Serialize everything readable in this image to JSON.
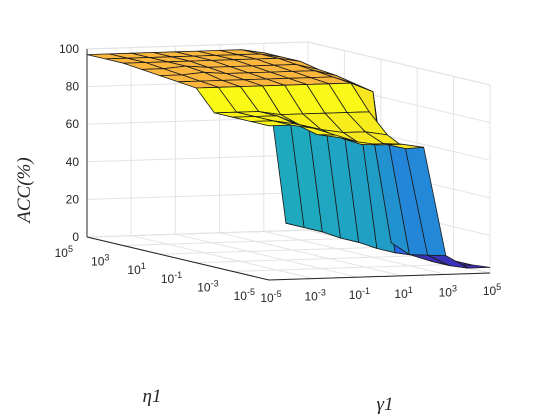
{
  "chart_data": {
    "type": "surface3d",
    "zlabel": "ACC(%)",
    "xlabel": "γ1",
    "ylabel": "η1",
    "zlim": [
      0,
      100
    ],
    "z_ticks": [
      "0",
      "20",
      "40",
      "60",
      "80",
      "100"
    ],
    "gamma1_ticks": [
      {
        "base": "10",
        "exp": "-5"
      },
      {
        "base": "10",
        "exp": "-3"
      },
      {
        "base": "10",
        "exp": "-1"
      },
      {
        "base": "10",
        "exp": "1"
      },
      {
        "base": "10",
        "exp": "3"
      },
      {
        "base": "10",
        "exp": "5"
      }
    ],
    "eta1_ticks": [
      {
        "base": "10",
        "exp": "5"
      },
      {
        "base": "10",
        "exp": "3"
      },
      {
        "base": "10",
        "exp": "1"
      },
      {
        "base": "10",
        "exp": "-1"
      },
      {
        "base": "10",
        "exp": "-3"
      },
      {
        "base": "10",
        "exp": "-5"
      }
    ],
    "gamma1_exponents": [
      -5,
      -4,
      -3,
      -2,
      -1,
      0,
      1,
      2,
      3,
      4,
      5
    ],
    "eta1_exponents": [
      5,
      4,
      3,
      2,
      1,
      0,
      -1,
      -2,
      -3,
      -4,
      -5
    ],
    "acc_rows_description_free": true,
    "acc": [
      [
        97,
        97,
        97,
        97,
        97,
        97,
        97,
        97,
        95,
        4,
        4
      ],
      [
        97,
        97,
        97,
        97,
        97,
        97,
        97,
        97,
        95,
        4,
        4
      ],
      [
        97,
        97,
        97,
        97,
        97,
        97,
        97,
        97,
        95,
        4,
        4
      ],
      [
        96,
        96,
        97,
        96,
        96,
        96,
        96,
        96,
        93,
        3,
        3
      ],
      [
        95,
        95,
        96,
        95,
        95,
        95,
        95,
        95,
        92,
        3,
        3
      ],
      [
        94,
        94,
        94,
        94,
        94,
        94,
        94,
        94,
        90,
        2,
        2
      ],
      [
        93,
        93,
        93,
        93,
        93,
        93,
        93,
        93,
        88,
        2,
        2
      ],
      [
        82,
        82,
        82,
        80,
        80,
        80,
        80,
        80,
        10,
        3,
        3
      ],
      [
        82,
        82,
        82,
        77,
        74,
        72,
        72,
        70,
        6,
        2,
        2
      ],
      [
        82,
        82,
        80,
        74,
        72,
        68,
        68,
        65,
        8,
        2,
        2
      ],
      [
        82,
        82,
        80,
        76,
        72,
        70,
        70,
        68,
        10,
        3,
        3
      ]
    ]
  }
}
